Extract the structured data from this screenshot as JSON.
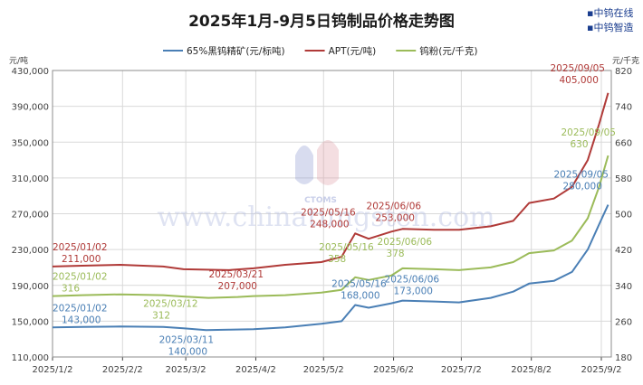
{
  "title": "2025年1月-9月5日钨制品价格走势图",
  "brand": {
    "line1": "中钨在线",
    "line2": "中钨智造"
  },
  "watermark": {
    "url": "www.chinatungsten.com",
    "logo_text": "CTOMS"
  },
  "colors": {
    "wc": "#4a7fb5",
    "apt": "#b03a38",
    "powder": "#9bbb59",
    "grid": "#d9d9d9",
    "axis": "#404040"
  },
  "chart_data": {
    "type": "line",
    "title": "2025年1月-9月5日钨制品价格走势图",
    "x_ticks": [
      "2025/1/2",
      "2025/2/2",
      "2025/3/2",
      "2025/4/2",
      "2025/5/2",
      "2025/6/2",
      "2025/7/2",
      "2025/8/2",
      "2025/9/2"
    ],
    "y_left": {
      "unit": "元/吨",
      "min": 110000,
      "max": 430000,
      "ticks": [
        "110,000",
        "150,000",
        "190,000",
        "230,000",
        "270,000",
        "310,000",
        "350,000",
        "390,000",
        "430,000"
      ]
    },
    "y_right": {
      "unit": "元/千克",
      "min": 180,
      "max": 820,
      "ticks": [
        "180",
        "260",
        "340",
        "420",
        "500",
        "580",
        "660",
        "740",
        "820"
      ]
    },
    "grid": true,
    "legend_position": "top",
    "series": [
      {
        "name": "65%黑钨精矿(元/标吨)",
        "axis": "left",
        "color": "#4a7fb5",
        "points": [
          [
            "2025-01-02",
            143000
          ],
          [
            "2025-01-15",
            143500
          ],
          [
            "2025-02-01",
            144000
          ],
          [
            "2025-02-20",
            143500
          ],
          [
            "2025-03-01",
            142000
          ],
          [
            "2025-03-11",
            140000
          ],
          [
            "2025-03-21",
            140500
          ],
          [
            "2025-04-01",
            141000
          ],
          [
            "2025-04-15",
            143000
          ],
          [
            "2025-05-01",
            147000
          ],
          [
            "2025-05-10",
            150000
          ],
          [
            "2025-05-16",
            168000
          ],
          [
            "2025-05-22",
            165000
          ],
          [
            "2025-06-01",
            170000
          ],
          [
            "2025-06-06",
            173000
          ],
          [
            "2025-06-20",
            172000
          ],
          [
            "2025-07-01",
            171000
          ],
          [
            "2025-07-15",
            176000
          ],
          [
            "2025-07-25",
            183000
          ],
          [
            "2025-08-01",
            192000
          ],
          [
            "2025-08-12",
            195000
          ],
          [
            "2025-08-20",
            205000
          ],
          [
            "2025-08-27",
            230000
          ],
          [
            "2025-09-01",
            258000
          ],
          [
            "2025-09-05",
            280000
          ]
        ]
      },
      {
        "name": "APT(元/吨)",
        "axis": "left",
        "color": "#b03a38",
        "points": [
          [
            "2025-01-02",
            211000
          ],
          [
            "2025-01-15",
            212000
          ],
          [
            "2025-02-01",
            213000
          ],
          [
            "2025-02-20",
            211000
          ],
          [
            "2025-03-01",
            208000
          ],
          [
            "2025-03-21",
            207000
          ],
          [
            "2025-04-01",
            209000
          ],
          [
            "2025-04-15",
            213000
          ],
          [
            "2025-05-01",
            216000
          ],
          [
            "2025-05-10",
            222000
          ],
          [
            "2025-05-16",
            248000
          ],
          [
            "2025-05-22",
            242000
          ],
          [
            "2025-06-01",
            250000
          ],
          [
            "2025-06-06",
            253000
          ],
          [
            "2025-06-20",
            252000
          ],
          [
            "2025-07-01",
            252000
          ],
          [
            "2025-07-15",
            256000
          ],
          [
            "2025-07-25",
            262000
          ],
          [
            "2025-08-01",
            282000
          ],
          [
            "2025-08-12",
            287000
          ],
          [
            "2025-08-20",
            300000
          ],
          [
            "2025-08-27",
            330000
          ],
          [
            "2025-09-01",
            370000
          ],
          [
            "2025-09-05",
            405000
          ]
        ]
      },
      {
        "name": "钨粉(元/千克)",
        "axis": "right",
        "color": "#9bbb59",
        "points": [
          [
            "2025-01-02",
            316
          ],
          [
            "2025-01-15",
            318
          ],
          [
            "2025-02-01",
            320
          ],
          [
            "2025-02-20",
            318
          ],
          [
            "2025-03-01",
            315
          ],
          [
            "2025-03-12",
            312
          ],
          [
            "2025-03-25",
            314
          ],
          [
            "2025-04-01",
            316
          ],
          [
            "2025-04-15",
            318
          ],
          [
            "2025-05-01",
            324
          ],
          [
            "2025-05-10",
            330
          ],
          [
            "2025-05-16",
            358
          ],
          [
            "2025-05-22",
            352
          ],
          [
            "2025-06-01",
            362
          ],
          [
            "2025-06-06",
            378
          ],
          [
            "2025-06-20",
            376
          ],
          [
            "2025-07-01",
            374
          ],
          [
            "2025-07-15",
            380
          ],
          [
            "2025-07-25",
            392
          ],
          [
            "2025-08-01",
            412
          ],
          [
            "2025-08-12",
            418
          ],
          [
            "2025-08-20",
            440
          ],
          [
            "2025-08-27",
            490
          ],
          [
            "2025-09-01",
            560
          ],
          [
            "2025-09-05",
            630
          ]
        ]
      }
    ],
    "annotations": [
      {
        "series": 0,
        "date": "2025-01-02",
        "date_label": "2025/01/02",
        "value_label": "143,000"
      },
      {
        "series": 0,
        "date": "2025-03-11",
        "date_label": "2025/03/11",
        "value_label": "140,000"
      },
      {
        "series": 0,
        "date": "2025-05-16",
        "date_label": "2025/05/16",
        "value_label": "168,000"
      },
      {
        "series": 0,
        "date": "2025-06-06",
        "date_label": "2025/06/06",
        "value_label": "173,000"
      },
      {
        "series": 0,
        "date": "2025-09-05",
        "date_label": "2025/09/05",
        "value_label": "280,000"
      },
      {
        "series": 1,
        "date": "2025-01-02",
        "date_label": "2025/01/02",
        "value_label": "211,000"
      },
      {
        "series": 1,
        "date": "2025-03-21",
        "date_label": "2025/03/21",
        "value_label": "207,000"
      },
      {
        "series": 1,
        "date": "2025-05-16",
        "date_label": "2025/05/16",
        "value_label": "248,000"
      },
      {
        "series": 1,
        "date": "2025-06-06",
        "date_label": "2025/06/06",
        "value_label": "253,000"
      },
      {
        "series": 1,
        "date": "2025-09-05",
        "date_label": "2025/09/05",
        "value_label": "405,000"
      },
      {
        "series": 2,
        "date": "2025-01-02",
        "date_label": "2025/01/02",
        "value_label": "316"
      },
      {
        "series": 2,
        "date": "2025-03-12",
        "date_label": "2025/03/12",
        "value_label": "312"
      },
      {
        "series": 2,
        "date": "2025-05-16",
        "date_label": "2025/05/16",
        "value_label": "358"
      },
      {
        "series": 2,
        "date": "2025-06-06",
        "date_label": "2025/06/06",
        "value_label": "378"
      },
      {
        "series": 2,
        "date": "2025-09-05",
        "date_label": "2025/09/05",
        "value_label": "630"
      }
    ]
  }
}
